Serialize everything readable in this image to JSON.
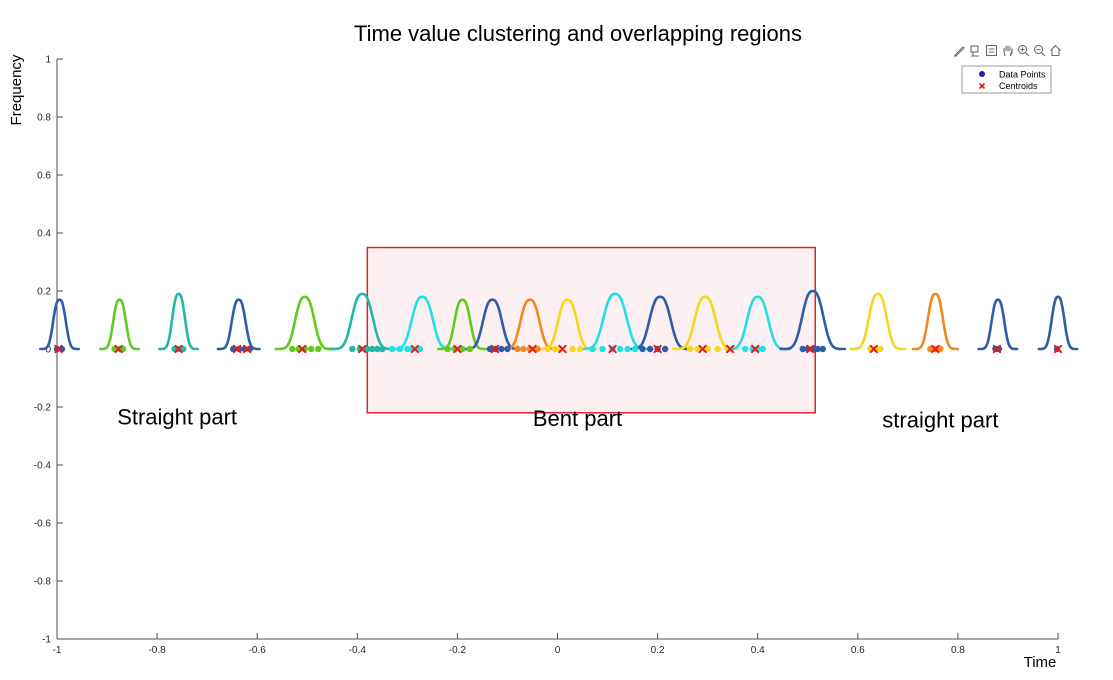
{
  "chart_data": {
    "type": "line",
    "title": "Time value clustering and overlapping regions",
    "xlabel": "Time",
    "ylabel": "Frequency",
    "xlim": [
      -1,
      1
    ],
    "ylim": [
      -1,
      1
    ],
    "x_ticks": [
      "-1",
      "-0.8",
      "-0.6",
      "-0.4",
      "-0.2",
      "0",
      "0.2",
      "0.4",
      "0.6",
      "0.8",
      "1"
    ],
    "y_ticks": [
      "1",
      "0.8",
      "0.6",
      "0.4",
      "0.2",
      "0",
      "-0.2",
      "-0.4",
      "-0.6",
      "-0.8",
      "-1"
    ],
    "grid": false,
    "legend": {
      "placement": "top-right",
      "entries": [
        {
          "label": "Data Points",
          "marker": "circle",
          "color": "#1f1fb4"
        },
        {
          "label": "Centroids",
          "marker": "x",
          "color": "#e41a1c"
        }
      ]
    },
    "series": [
      {
        "center": -0.995,
        "peak": 0.17,
        "spread": 0.012,
        "color": "#2e5da8",
        "points": [
          -1.0,
          -0.99
        ]
      },
      {
        "center": -0.875,
        "peak": 0.17,
        "spread": 0.012,
        "color": "#5ecb1e",
        "points": [
          -0.885,
          -0.875,
          -0.868
        ]
      },
      {
        "center": -0.757,
        "peak": 0.19,
        "spread": 0.012,
        "color": "#22b8a8",
        "points": [
          -0.765,
          -0.757,
          -0.748
        ]
      },
      {
        "center": -0.637,
        "peak": 0.17,
        "spread": 0.013,
        "color": "#2e5da8",
        "points": [
          -0.648,
          -0.636,
          -0.625,
          -0.615
        ]
      },
      {
        "center": -0.505,
        "peak": 0.18,
        "spread": 0.018,
        "color": "#5ecb1e",
        "points": [
          -0.53,
          -0.517,
          -0.505,
          -0.492,
          -0.478
        ]
      },
      {
        "center": -0.39,
        "peak": 0.19,
        "spread": 0.02,
        "color": "#22b8a8",
        "points": [
          -0.41,
          -0.395,
          -0.38,
          -0.37,
          -0.36,
          -0.35
        ]
      },
      {
        "center": -0.27,
        "peak": 0.18,
        "spread": 0.02,
        "color": "#1ee0e6",
        "points": [
          -0.33,
          -0.315,
          -0.3,
          -0.29,
          -0.275
        ]
      },
      {
        "center": -0.19,
        "peak": 0.17,
        "spread": 0.015,
        "color": "#5ecb1e",
        "points": [
          -0.22,
          -0.205,
          -0.19,
          -0.175
        ]
      },
      {
        "center": -0.13,
        "peak": 0.17,
        "spread": 0.018,
        "color": "#2e5da8",
        "points": [
          -0.135,
          -0.124,
          -0.112,
          -0.1
        ]
      },
      {
        "center": -0.055,
        "peak": 0.17,
        "spread": 0.018,
        "color": "#f08a1e",
        "points": [
          -0.08,
          -0.068,
          -0.055,
          -0.04
        ]
      },
      {
        "center": 0.02,
        "peak": 0.17,
        "spread": 0.018,
        "color": "#f5d71c",
        "points": [
          -0.02,
          -0.005,
          0.005,
          0.03,
          0.045
        ]
      },
      {
        "center": 0.115,
        "peak": 0.19,
        "spread": 0.022,
        "color": "#1ee0e6",
        "points": [
          0.07,
          0.09,
          0.11,
          0.125,
          0.14,
          0.155
        ]
      },
      {
        "center": 0.205,
        "peak": 0.18,
        "spread": 0.02,
        "color": "#2e5da8",
        "points": [
          0.17,
          0.185,
          0.2,
          0.215
        ]
      },
      {
        "center": 0.295,
        "peak": 0.18,
        "spread": 0.02,
        "color": "#f5d71c",
        "points": [
          0.265,
          0.28,
          0.3,
          0.32,
          0.34
        ]
      },
      {
        "center": 0.4,
        "peak": 0.18,
        "spread": 0.02,
        "color": "#1ee0e6",
        "points": [
          0.375,
          0.39,
          0.4,
          0.41
        ]
      },
      {
        "center": 0.51,
        "peak": 0.2,
        "spread": 0.02,
        "color": "#2e5da8",
        "points": [
          0.49,
          0.5,
          0.51,
          0.52,
          0.53
        ]
      },
      {
        "center": 0.64,
        "peak": 0.19,
        "spread": 0.017,
        "color": "#f5d71c",
        "points": [
          0.625,
          0.635,
          0.645
        ]
      },
      {
        "center": 0.755,
        "peak": 0.19,
        "spread": 0.014,
        "color": "#f08a1e",
        "points": [
          0.745,
          0.755,
          0.765
        ]
      },
      {
        "center": 0.88,
        "peak": 0.17,
        "spread": 0.012,
        "color": "#2e5da8",
        "points": [
          0.875,
          0.882
        ]
      },
      {
        "center": 1.0,
        "peak": 0.18,
        "spread": 0.012,
        "color": "#2e5da8",
        "points": [
          0.998
        ]
      }
    ],
    "centroids": [
      -0.997,
      -0.877,
      -0.757,
      -0.64,
      -0.62,
      -0.51,
      -0.39,
      -0.285,
      -0.2,
      -0.125,
      -0.05,
      0.01,
      0.11,
      0.2,
      0.29,
      0.345,
      0.395,
      0.505,
      0.632,
      0.755,
      0.878,
      1.0
    ],
    "highlight_region": {
      "x": [
        -0.38,
        0.515
      ],
      "y": [
        -0.22,
        0.35
      ],
      "fill": "#fdf0f2",
      "stroke": "#d9262e"
    },
    "annotations": [
      {
        "text": "Straight part",
        "x": -0.76,
        "y": -0.26
      },
      {
        "text": "Bent part",
        "x": 0.04,
        "y": -0.265
      },
      {
        "text": "straight part",
        "x": 0.765,
        "y": -0.27
      }
    ]
  },
  "toolbar": {
    "icons": [
      "brush-icon",
      "data-tips-icon",
      "legend-toggle-icon",
      "pan-icon",
      "zoom-in-icon",
      "zoom-out-icon",
      "home-icon"
    ]
  }
}
